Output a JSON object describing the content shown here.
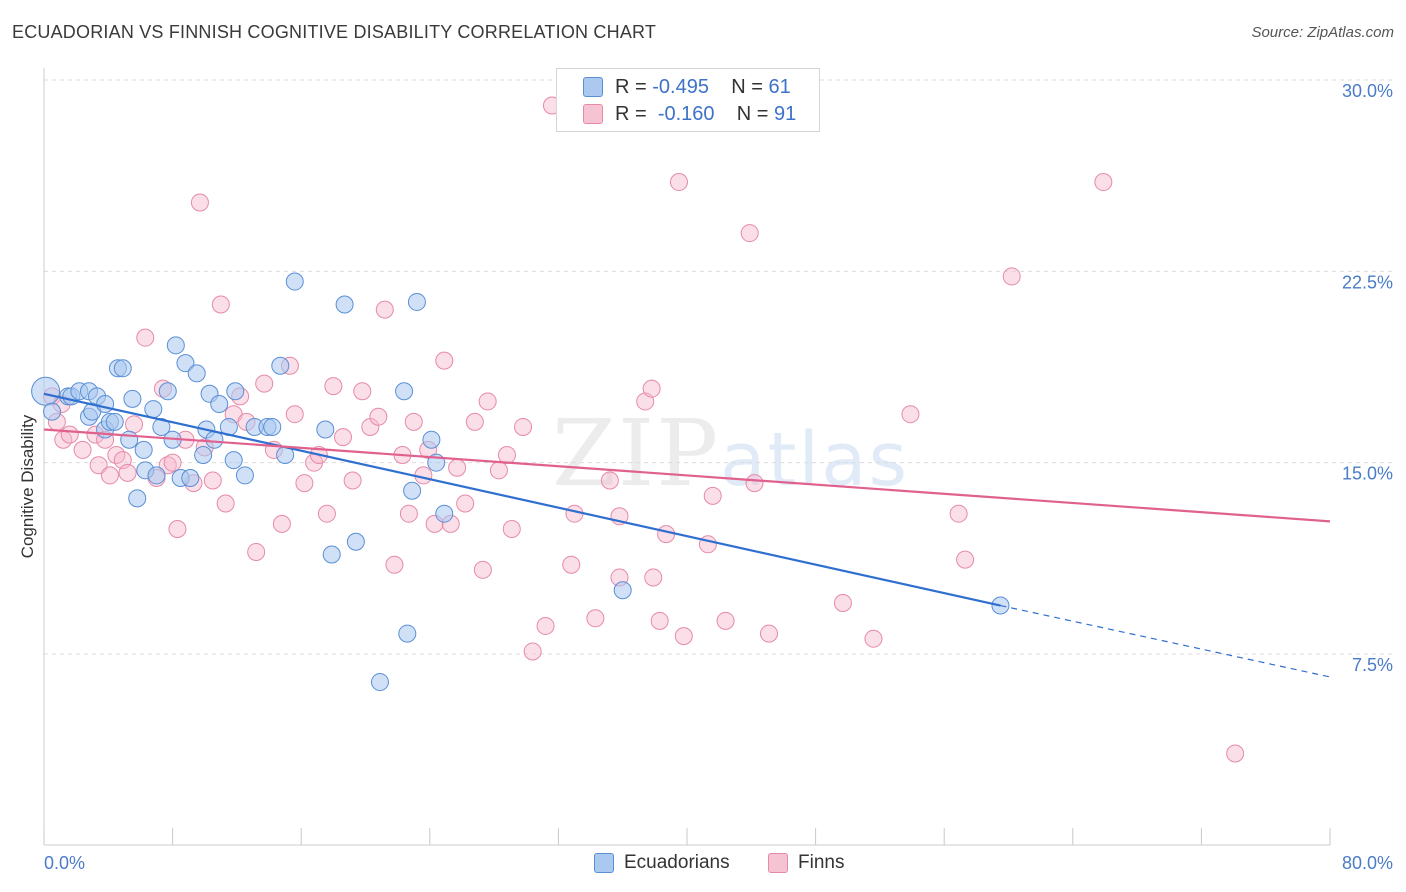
{
  "header": {
    "title": "ECUADORIAN VS FINNISH COGNITIVE DISABILITY CORRELATION CHART",
    "source": "Source: ZipAtlas.com"
  },
  "legend": {
    "r_label": "R =",
    "n_label": "N =",
    "rows": [
      {
        "r": "-0.495",
        "n": "61"
      },
      {
        "r": "-0.160",
        "n": "91"
      }
    ]
  },
  "bottom_legend": [
    "Ecuadorians",
    "Finns"
  ],
  "watermark": {
    "zip": "ZIP",
    "atlas": "atlas"
  },
  "colors": {
    "ecuadorian_fill": "#aac8f0",
    "ecuadorian_stroke": "#5a8fd6",
    "ecuadorian_line": "#2f6fd0",
    "finn_fill": "#f6b8cc",
    "finn_stroke": "#e68aa8",
    "finn_line": "#e0618e",
    "tick_text": "#4a7cc7"
  },
  "chart_data": {
    "type": "scatter",
    "title": "ECUADORIAN VS FINNISH COGNITIVE DISABILITY CORRELATION CHART",
    "xlabel": "",
    "ylabel": "Cognitive Disability",
    "xlim": [
      0,
      80
    ],
    "ylim": [
      0,
      31
    ],
    "x_tick_labels": [
      "0.0%",
      "80.0%"
    ],
    "y_ticks": [
      7.5,
      15.0,
      22.5,
      30.0
    ],
    "y_tick_labels": [
      "7.5%",
      "15.0%",
      "22.5%",
      "30.0%"
    ],
    "grid": true,
    "legend_position": "top-center",
    "series": [
      {
        "name": "Ecuadorians",
        "r": -0.495,
        "n": 61,
        "trend": {
          "x0": 0,
          "y0": 17.7,
          "x1": 59.5,
          "y1": 9.4,
          "dash_to_x": 80,
          "dash_to_y": 6.6
        },
        "points": [
          [
            0.1,
            17.8
          ],
          [
            0.5,
            17.0
          ],
          [
            1.5,
            17.6
          ],
          [
            1.7,
            17.6
          ],
          [
            2.2,
            17.8
          ],
          [
            2.8,
            17.8
          ],
          [
            2.8,
            16.8
          ],
          [
            3.0,
            17.0
          ],
          [
            3.3,
            17.6
          ],
          [
            3.8,
            16.3
          ],
          [
            3.8,
            17.3
          ],
          [
            4.1,
            16.6
          ],
          [
            4.4,
            16.6
          ],
          [
            4.6,
            18.7
          ],
          [
            4.9,
            18.7
          ],
          [
            5.3,
            15.9
          ],
          [
            5.5,
            17.5
          ],
          [
            5.8,
            13.6
          ],
          [
            6.2,
            15.5
          ],
          [
            6.3,
            14.7
          ],
          [
            6.8,
            17.1
          ],
          [
            7.0,
            14.5
          ],
          [
            7.3,
            16.4
          ],
          [
            7.7,
            17.8
          ],
          [
            8.0,
            15.9
          ],
          [
            8.2,
            19.6
          ],
          [
            8.5,
            14.4
          ],
          [
            8.8,
            18.9
          ],
          [
            9.1,
            14.4
          ],
          [
            9.5,
            18.5
          ],
          [
            9.9,
            15.3
          ],
          [
            10.1,
            16.3
          ],
          [
            10.3,
            17.7
          ],
          [
            10.6,
            15.9
          ],
          [
            10.9,
            17.3
          ],
          [
            11.5,
            16.4
          ],
          [
            11.8,
            15.1
          ],
          [
            11.9,
            17.8
          ],
          [
            12.5,
            14.5
          ],
          [
            13.1,
            16.4
          ],
          [
            13.9,
            16.4
          ],
          [
            14.2,
            16.4
          ],
          [
            14.7,
            18.8
          ],
          [
            15.0,
            15.3
          ],
          [
            15.6,
            22.1
          ],
          [
            17.5,
            16.3
          ],
          [
            17.9,
            11.4
          ],
          [
            18.7,
            21.2
          ],
          [
            19.4,
            11.9
          ],
          [
            20.9,
            6.4
          ],
          [
            22.4,
            17.8
          ],
          [
            22.6,
            8.3
          ],
          [
            22.9,
            13.9
          ],
          [
            23.2,
            21.3
          ],
          [
            24.1,
            15.9
          ],
          [
            24.4,
            15.0
          ],
          [
            24.9,
            13.0
          ],
          [
            36.0,
            10.0
          ],
          [
            59.5,
            9.4
          ]
        ]
      },
      {
        "name": "Finns",
        "r": -0.16,
        "n": 91,
        "trend": {
          "x0": 0,
          "y0": 16.3,
          "x1": 80,
          "y1": 12.7
        },
        "points": [
          [
            0.5,
            17.6
          ],
          [
            0.8,
            16.6
          ],
          [
            1.1,
            17.3
          ],
          [
            1.2,
            15.9
          ],
          [
            1.6,
            16.1
          ],
          [
            2.4,
            15.5
          ],
          [
            3.2,
            16.1
          ],
          [
            3.4,
            14.9
          ],
          [
            3.8,
            15.9
          ],
          [
            4.1,
            14.5
          ],
          [
            4.5,
            15.3
          ],
          [
            4.9,
            15.1
          ],
          [
            5.2,
            14.6
          ],
          [
            5.6,
            16.5
          ],
          [
            6.3,
            19.9
          ],
          [
            7.0,
            14.4
          ],
          [
            7.4,
            17.9
          ],
          [
            7.7,
            14.9
          ],
          [
            8.0,
            15.0
          ],
          [
            8.3,
            12.4
          ],
          [
            8.8,
            15.9
          ],
          [
            9.3,
            14.2
          ],
          [
            9.7,
            25.2
          ],
          [
            10.0,
            15.6
          ],
          [
            10.5,
            14.3
          ],
          [
            11.0,
            21.2
          ],
          [
            11.3,
            13.4
          ],
          [
            11.8,
            16.9
          ],
          [
            12.2,
            17.6
          ],
          [
            12.6,
            16.6
          ],
          [
            13.2,
            11.5
          ],
          [
            13.7,
            18.1
          ],
          [
            14.3,
            15.5
          ],
          [
            14.8,
            12.6
          ],
          [
            15.3,
            18.8
          ],
          [
            15.6,
            16.9
          ],
          [
            16.2,
            14.2
          ],
          [
            16.8,
            15.0
          ],
          [
            17.1,
            15.3
          ],
          [
            17.6,
            13.0
          ],
          [
            18.0,
            18.0
          ],
          [
            18.6,
            16.0
          ],
          [
            19.2,
            14.3
          ],
          [
            19.8,
            17.8
          ],
          [
            20.3,
            16.4
          ],
          [
            20.8,
            16.8
          ],
          [
            21.2,
            21.0
          ],
          [
            21.8,
            11.0
          ],
          [
            22.3,
            15.3
          ],
          [
            22.7,
            13.0
          ],
          [
            23.0,
            16.6
          ],
          [
            23.6,
            14.5
          ],
          [
            23.9,
            15.5
          ],
          [
            24.3,
            12.6
          ],
          [
            24.9,
            19.0
          ],
          [
            25.3,
            12.6
          ],
          [
            25.7,
            14.8
          ],
          [
            26.2,
            13.4
          ],
          [
            26.8,
            16.6
          ],
          [
            27.3,
            10.8
          ],
          [
            27.6,
            17.4
          ],
          [
            28.3,
            14.7
          ],
          [
            28.8,
            15.3
          ],
          [
            29.1,
            12.4
          ],
          [
            29.8,
            16.4
          ],
          [
            30.4,
            7.6
          ],
          [
            31.2,
            8.6
          ],
          [
            31.6,
            29.0
          ],
          [
            32.8,
            11.0
          ],
          [
            33.0,
            13.0
          ],
          [
            34.3,
            8.9
          ],
          [
            35.2,
            14.3
          ],
          [
            35.8,
            12.9
          ],
          [
            35.8,
            10.5
          ],
          [
            37.4,
            17.4
          ],
          [
            37.8,
            17.9
          ],
          [
            37.9,
            10.5
          ],
          [
            38.3,
            8.8
          ],
          [
            38.7,
            12.2
          ],
          [
            39.5,
            26.0
          ],
          [
            39.8,
            8.2
          ],
          [
            41.3,
            11.8
          ],
          [
            41.6,
            13.7
          ],
          [
            42.4,
            8.8
          ],
          [
            43.9,
            24.0
          ],
          [
            44.2,
            14.2
          ],
          [
            45.1,
            8.3
          ],
          [
            49.7,
            9.5
          ],
          [
            51.6,
            8.1
          ],
          [
            53.9,
            16.9
          ],
          [
            56.9,
            13.0
          ],
          [
            57.3,
            11.2
          ],
          [
            60.2,
            22.3
          ],
          [
            65.9,
            26.0
          ],
          [
            74.1,
            3.6
          ]
        ]
      }
    ]
  }
}
